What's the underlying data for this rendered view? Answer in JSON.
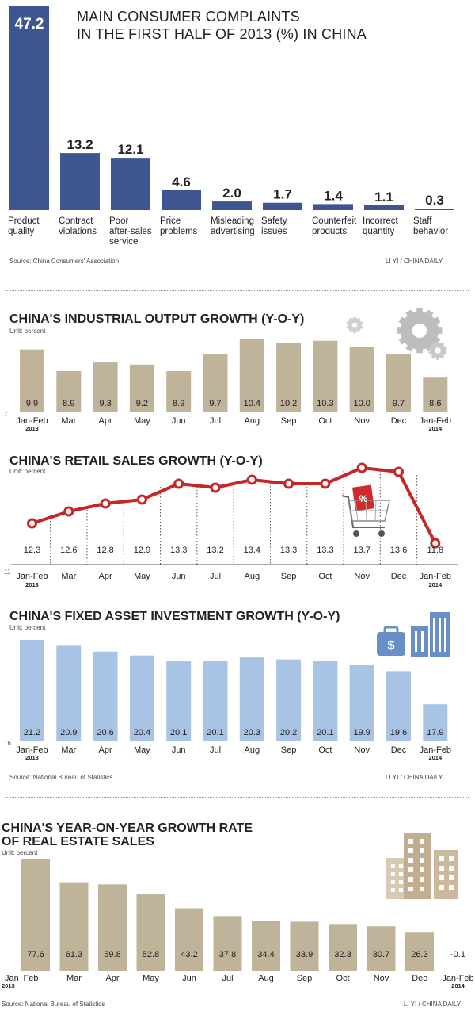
{
  "colors": {
    "navy": "#3f5592",
    "tan": "#bfb49a",
    "red": "#c62626",
    "blue": "#a9c3e4",
    "text": "#222222",
    "icon": "#6a8fc7"
  },
  "panel1": {
    "title_line1": "MAIN CONSUMER COMPLAINTS",
    "title_line2": "IN THE FIRST HALF OF 2013 (%) IN CHINA",
    "source": "Source: China Consumers' Association",
    "credit": "LI YI / CHINA DAILY"
  },
  "panel2": {
    "title": "CHINA'S INDUSTRIAL OUTPUT GROWTH (Y-O-Y)",
    "unit": "Unit: percent"
  },
  "panel3": {
    "title": "CHINA'S RETAIL SALES GROWTH (Y-O-Y)",
    "unit": "Unit: percent",
    "cart_badge": "%"
  },
  "panel4": {
    "title": "CHINA'S FIXED ASSET INVESTMENT GROWTH (Y-O-Y)",
    "unit": "Unit: percent",
    "source": "Source: National Bureau of Statistics",
    "credit": "LI YI / CHINA DAILY",
    "bag_symbol": "$"
  },
  "panel5": {
    "title_line1": "CHINA'S YEAR-ON-YEAR GROWTH RATE",
    "title_line2": "OF REAL ESTATE SALES",
    "unit": "Unit: percent",
    "source": "Source: National Bureau of Statistics",
    "credit": "LI YI / CHINA DAILY"
  },
  "chart_data": [
    {
      "type": "bar",
      "title": "MAIN CONSUMER COMPLAINTS IN THE FIRST HALF OF 2013 (%) IN CHINA",
      "categories": [
        [
          "Product",
          "quality"
        ],
        [
          "Contract",
          "violations"
        ],
        [
          "Poor",
          "after-sales",
          "service"
        ],
        [
          "Price",
          "problems"
        ],
        [
          "Misleading",
          "advertising"
        ],
        [
          "Safety",
          "issues"
        ],
        [
          "Counterfeit",
          "products"
        ],
        [
          "Incorrect",
          "quantity"
        ],
        [
          "Staff",
          "behavior"
        ]
      ],
      "values": [
        47.2,
        13.2,
        12.1,
        4.6,
        2.0,
        1.7,
        1.4,
        1.1,
        0.3
      ],
      "labels": [
        "47.2",
        "13.2",
        "12.1",
        "4.6",
        "2.0",
        "1.7",
        "1.4",
        "1.1",
        "0.3"
      ],
      "ylim": [
        0,
        47.2
      ]
    },
    {
      "type": "bar",
      "title": "CHINA'S INDUSTRIAL OUTPUT GROWTH (Y-O-Y)",
      "ylabel": "Unit: percent",
      "categories": [
        "Jan-Feb",
        "Mar",
        "Apr",
        "May",
        "Jun",
        "Jul",
        "Aug",
        "Sep",
        "Oct",
        "Nov",
        "Dec",
        "Jan-Feb"
      ],
      "year_labels": [
        "2013",
        "",
        "",
        "",
        "",
        "",
        "",
        "",
        "",
        "",
        "",
        "2014"
      ],
      "values": [
        9.9,
        8.9,
        9.3,
        9.2,
        8.9,
        9.7,
        10.4,
        10.2,
        10.3,
        10.0,
        9.7,
        8.6
      ],
      "labels": [
        "9.9",
        "8.9",
        "9.3",
        "9.2",
        "8.9",
        "9.7",
        "10.4",
        "10.2",
        "10.3",
        "10.0",
        "9.7",
        "8.6"
      ],
      "baseline": 7,
      "ylim": [
        7,
        10.4
      ]
    },
    {
      "type": "line",
      "title": "CHINA'S RETAIL SALES GROWTH (Y-O-Y)",
      "ylabel": "Unit: percent",
      "categories": [
        "Jan-Feb",
        "Mar",
        "Apr",
        "May",
        "Jun",
        "Jul",
        "Aug",
        "Sep",
        "Oct",
        "Nov",
        "Dec",
        "Jan-Feb"
      ],
      "year_labels": [
        "2013",
        "",
        "",
        "",
        "",
        "",
        "",
        "",
        "",
        "",
        "",
        "2014"
      ],
      "values": [
        12.3,
        12.6,
        12.8,
        12.9,
        13.3,
        13.2,
        13.4,
        13.3,
        13.3,
        13.7,
        13.6,
        11.8
      ],
      "labels": [
        "12.3",
        "12.6",
        "12.8",
        "12.9",
        "13.3",
        "13.2",
        "13.4",
        "13.3",
        "13.3",
        "13.7",
        "13.6",
        "11.8"
      ],
      "baseline": 11,
      "ylim": [
        11.8,
        13.7
      ]
    },
    {
      "type": "bar",
      "title": "CHINA'S FIXED ASSET INVESTMENT GROWTH (Y-O-Y)",
      "ylabel": "Unit: percent",
      "categories": [
        "Jan-Feb",
        "Mar",
        "Apr",
        "May",
        "Jun",
        "Jul",
        "Aug",
        "Sep",
        "Oct",
        "Nov",
        "Dec",
        "Jan-Feb"
      ],
      "year_labels": [
        "2013",
        "",
        "",
        "",
        "",
        "",
        "",
        "",
        "",
        "",
        "",
        "2014"
      ],
      "values": [
        21.2,
        20.9,
        20.6,
        20.4,
        20.1,
        20.1,
        20.3,
        20.2,
        20.1,
        19.9,
        19.6,
        17.9
      ],
      "labels": [
        "21.2",
        "20.9",
        "20.6",
        "20.4",
        "20.1",
        "20.1",
        "20.3",
        "20.2",
        "20.1",
        "19.9",
        "19.6",
        "17.9"
      ],
      "baseline": 16,
      "ylim": [
        16,
        21.2
      ]
    },
    {
      "type": "bar",
      "title": "CHINA'S YEAR-ON-YEAR GROWTH RATE OF REAL ESTATE SALES",
      "ylabel": "Unit: percent",
      "categories": [
        "Feb",
        "Mar",
        "Apr",
        "May",
        "Jun",
        "Jul",
        "Aug",
        "Sep",
        "Oct",
        "Nov",
        "Dec",
        "Jan-Feb"
      ],
      "axis_start_label": "Jan",
      "year_labels": [
        "2013",
        "",
        "",
        "",
        "",
        "",
        "",
        "",
        "",
        "",
        "",
        "2014"
      ],
      "values": [
        77.6,
        61.3,
        59.8,
        52.8,
        43.2,
        37.8,
        34.4,
        33.9,
        32.3,
        30.7,
        26.3,
        -0.1
      ],
      "labels": [
        "77.6",
        "61.3",
        "59.8",
        "52.8",
        "43.2",
        "37.8",
        "34.4",
        "33.9",
        "32.3",
        "30.7",
        "26.3",
        "-0.1"
      ],
      "ylim": [
        0,
        77.6
      ]
    }
  ]
}
